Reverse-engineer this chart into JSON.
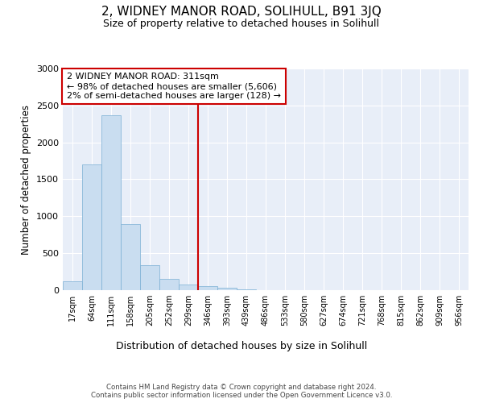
{
  "title1": "2, WIDNEY MANOR ROAD, SOLIHULL, B91 3JQ",
  "title2": "Size of property relative to detached houses in Solihull",
  "xlabel": "Distribution of detached houses by size in Solihull",
  "ylabel": "Number of detached properties",
  "bar_color": "#c9ddf0",
  "bar_edge_color": "#7aafd4",
  "background_color": "#e8eef8",
  "bins": [
    "17sqm",
    "64sqm",
    "111sqm",
    "158sqm",
    "205sqm",
    "252sqm",
    "299sqm",
    "346sqm",
    "393sqm",
    "439sqm",
    "486sqm",
    "533sqm",
    "580sqm",
    "627sqm",
    "674sqm",
    "721sqm",
    "768sqm",
    "815sqm",
    "862sqm",
    "909sqm",
    "956sqm"
  ],
  "values": [
    120,
    1700,
    2370,
    890,
    340,
    150,
    80,
    55,
    35,
    10,
    5,
    3,
    2,
    1,
    1,
    0,
    0,
    0,
    0,
    0,
    0
  ],
  "vline_x": 6.5,
  "vline_color": "#cc0000",
  "annotation_line1": "2 WIDNEY MANOR ROAD: 311sqm",
  "annotation_line2": "← 98% of detached houses are smaller (5,606)",
  "annotation_line3": "2% of semi-detached houses are larger (128) →",
  "annotation_box_facecolor": "white",
  "annotation_box_edgecolor": "#cc0000",
  "ylim": [
    0,
    3000
  ],
  "yticks": [
    0,
    500,
    1000,
    1500,
    2000,
    2500,
    3000
  ],
  "footer1": "Contains HM Land Registry data © Crown copyright and database right 2024.",
  "footer2": "Contains public sector information licensed under the Open Government Licence v3.0."
}
